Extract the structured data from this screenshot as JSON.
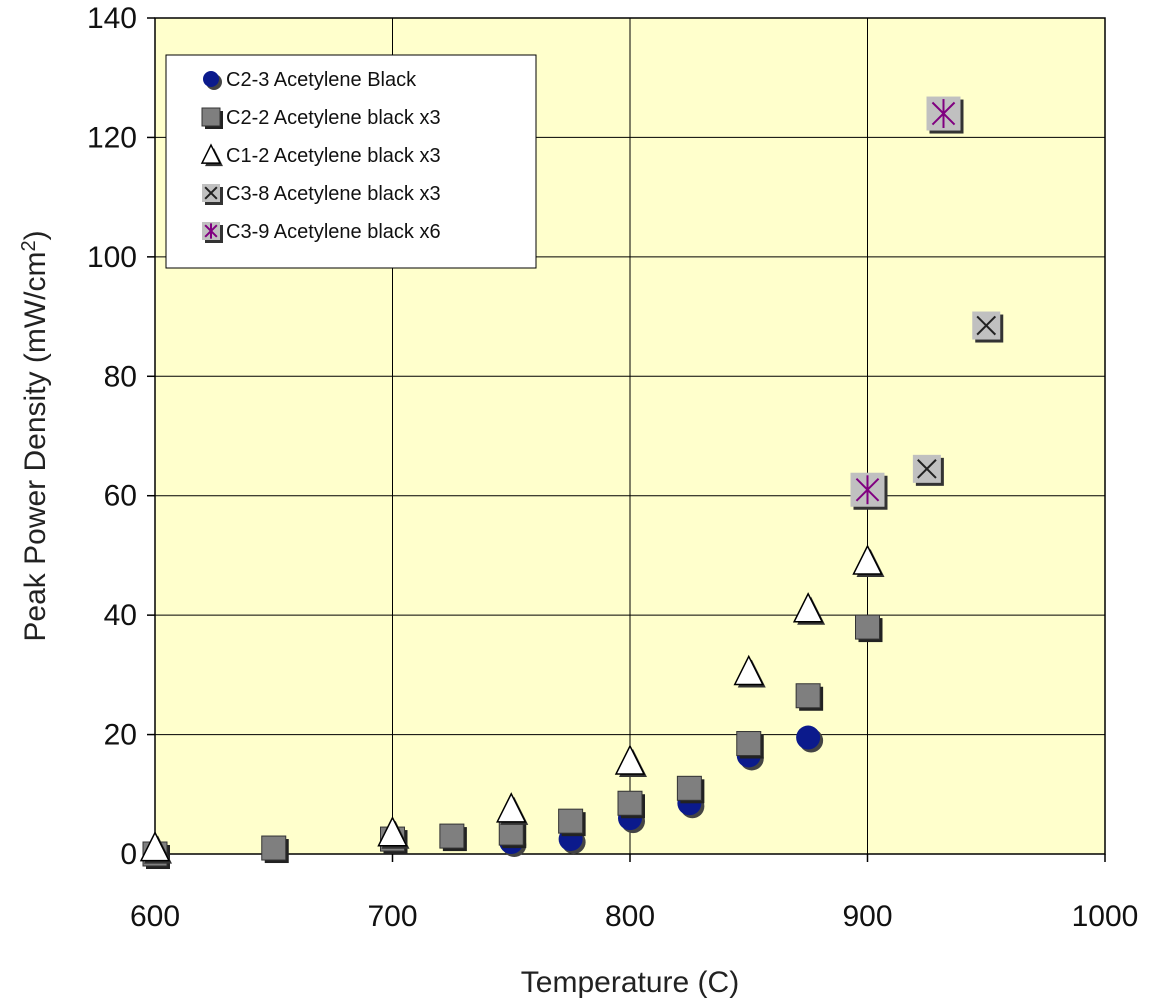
{
  "chart_data": {
    "type": "scatter",
    "title": "",
    "xlabel": "Temperature (C)",
    "ylabel": "Peak Power Density (mW/cm²)",
    "ylabel_main": "Peak Power Density (mW/cm",
    "ylabel_sup": "2",
    "ylabel_end": ")",
    "xlim": [
      600,
      1000
    ],
    "ylim": [
      0,
      140
    ],
    "x_ticks": [
      "600",
      "700",
      "800",
      "900",
      "1000"
    ],
    "y_ticks": [
      "0",
      "20",
      "40",
      "60",
      "80",
      "100",
      "120",
      "140"
    ],
    "grid": true,
    "legend_position": "top-left",
    "plot_background": "#ffffcc",
    "series": [
      {
        "name": "C2-3 Acetylene Black",
        "marker": "circle",
        "color": "#0b1a8c",
        "points": [
          [
            600,
            0
          ],
          [
            750,
            2
          ],
          [
            775,
            2.5
          ],
          [
            800,
            6
          ],
          [
            825,
            8.5
          ],
          [
            850,
            16.5
          ],
          [
            875,
            19.5
          ]
        ]
      },
      {
        "name": "C2-2 Acetylene black x3",
        "marker": "square",
        "color": "#7f7f7f",
        "points": [
          [
            600,
            0
          ],
          [
            650,
            1
          ],
          [
            700,
            2.5
          ],
          [
            725,
            3
          ],
          [
            750,
            3.5
          ],
          [
            775,
            5.5
          ],
          [
            800,
            8.5
          ],
          [
            825,
            11
          ],
          [
            850,
            18.5
          ],
          [
            875,
            26.5
          ],
          [
            900,
            38
          ]
        ]
      },
      {
        "name": "C1-2 Acetylene black x3",
        "marker": "triangle",
        "color": "#ffffff",
        "points": [
          [
            600,
            1
          ],
          [
            700,
            3.5
          ],
          [
            750,
            7.5
          ],
          [
            800,
            15.5
          ],
          [
            850,
            30.5
          ],
          [
            875,
            41
          ],
          [
            900,
            49
          ]
        ]
      },
      {
        "name": "C3-8 Acetylene black x3",
        "marker": "x-square",
        "color": "#c0c0c0",
        "points": [
          [
            925,
            64.5
          ],
          [
            950,
            88.5
          ]
        ]
      },
      {
        "name": "C3-9 Acetylene black x6",
        "marker": "star-square",
        "color": "#800080",
        "points": [
          [
            900,
            61
          ],
          [
            932,
            124
          ]
        ]
      }
    ]
  }
}
